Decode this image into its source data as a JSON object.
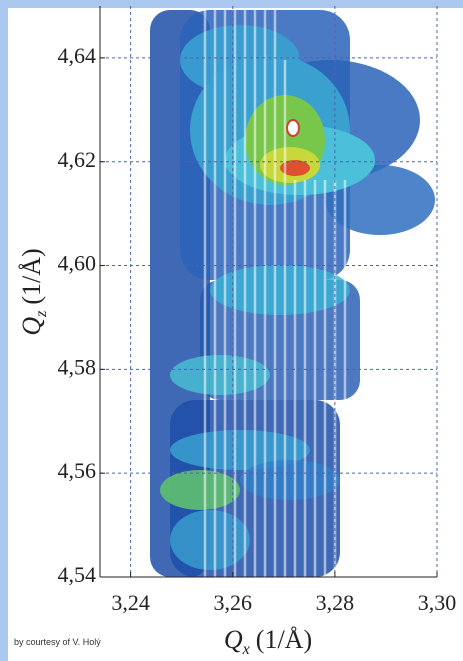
{
  "chart_data": {
    "type": "map",
    "xlabel": {
      "symbol": "Q",
      "subscript": "x",
      "unit": "(1/Å)"
    },
    "ylabel": {
      "symbol": "Q",
      "subscript": "z",
      "unit": "(1/Å)"
    },
    "xlim": [
      3.234,
      3.3
    ],
    "ylim": [
      4.54,
      4.65
    ],
    "xticks": [
      {
        "value": 3.24,
        "label": "3,24"
      },
      {
        "value": 3.26,
        "label": "3,26"
      },
      {
        "value": 3.28,
        "label": "3,28"
      },
      {
        "value": 3.3,
        "label": "3,30"
      }
    ],
    "yticks": [
      {
        "value": 4.54,
        "label": "4,54"
      },
      {
        "value": 4.56,
        "label": "4,56"
      },
      {
        "value": 4.58,
        "label": "4,58"
      },
      {
        "value": 4.6,
        "label": "4,60"
      },
      {
        "value": 4.62,
        "label": "4,62"
      },
      {
        "value": 4.64,
        "label": "4,64"
      }
    ],
    "grid": true,
    "grid_color": "#4a63b0",
    "credit": "by courtesy of  V. Holý"
  }
}
